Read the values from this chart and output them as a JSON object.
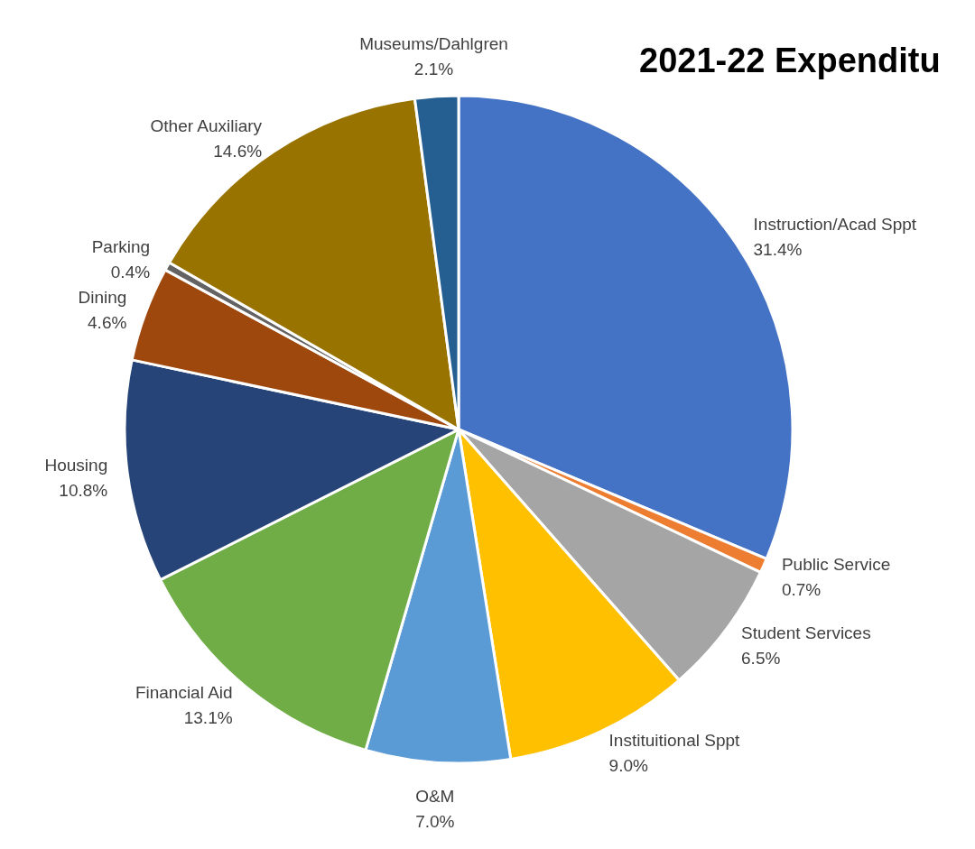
{
  "chart_data": {
    "type": "pie",
    "title": "2021-22 Expenditu",
    "categories": [
      "Instruction/Acad Sppt",
      "Public Service",
      "Student Services",
      "Instituitional Sppt",
      "O&M",
      "Financial Aid",
      "Housing",
      "Dining",
      "Parking",
      "Other Auxiliary",
      "Museums/Dahlgren"
    ],
    "values": [
      31.4,
      0.7,
      6.5,
      9.0,
      7.0,
      13.1,
      10.8,
      4.6,
      0.4,
      14.6,
      2.1
    ],
    "colors": [
      "#4472c4",
      "#ed7d31",
      "#a5a5a5",
      "#ffc000",
      "#5b9bd5",
      "#70ad47",
      "#264478",
      "#9e480e",
      "#636363",
      "#997300",
      "#255e91"
    ],
    "value_labels": [
      "31.4%",
      "0.7%",
      "6.5%",
      "9.0%",
      "7.0%",
      "13.1%",
      "10.8%",
      "4.6%",
      "0.4%",
      "14.6%",
      "2.1%"
    ],
    "legend": false
  }
}
